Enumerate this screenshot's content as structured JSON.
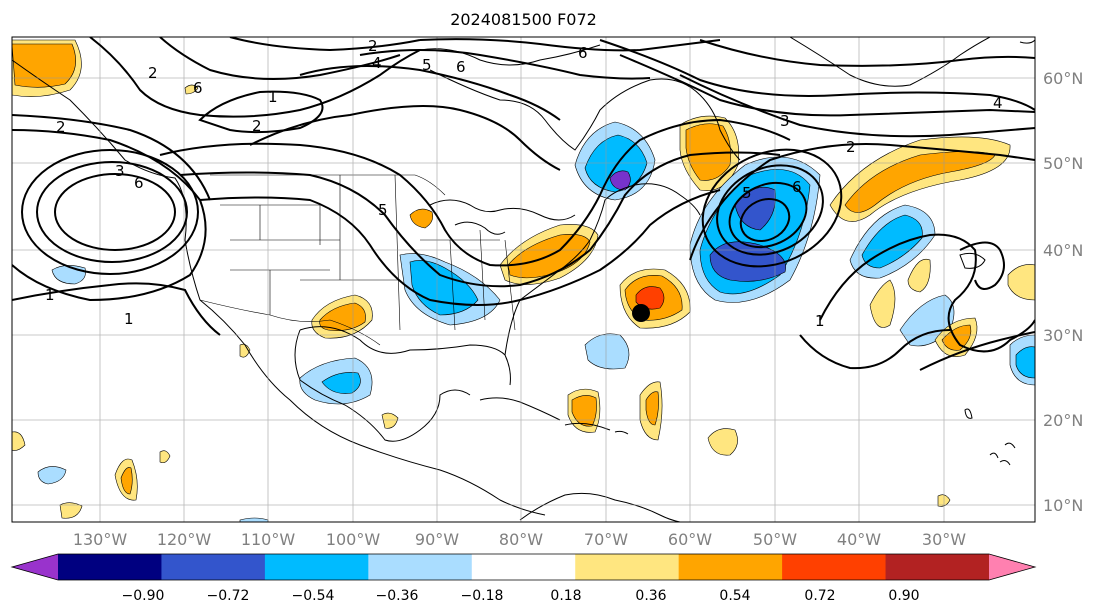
{
  "title": "2024081500 F072",
  "map": {
    "lon_labels": [
      "130°W",
      "120°W",
      "110°W",
      "100°W",
      "90°W",
      "80°W",
      "70°W",
      "60°W",
      "50°W",
      "40°W",
      "30°W"
    ],
    "lat_labels": [
      "60°N",
      "50°N",
      "40°N",
      "30°N",
      "20°N",
      "10°N"
    ],
    "contour_labels": [
      "2",
      "4",
      "5",
      "6",
      "6",
      "6",
      "1",
      "2",
      "2",
      "3",
      "5",
      "6",
      "6",
      "5",
      "1",
      "1",
      "1",
      "2",
      "3",
      "4",
      "2"
    ],
    "marker": "storm-center-dot"
  },
  "colorbar": {
    "ticks": [
      "−0.90",
      "−0.72",
      "−0.54",
      "−0.36",
      "−0.18",
      "0.18",
      "0.36",
      "0.54",
      "0.72",
      "0.90"
    ],
    "colors": [
      "#9933cc",
      "#000080",
      "#3355cc",
      "#00bbff",
      "#aaddff",
      "#ffffff",
      "#ffe680",
      "#ffa500",
      "#ff4000",
      "#b22222",
      "#ff80b0"
    ]
  },
  "palette": {
    "light_blue": "#aaddff",
    "cyan": "#00bbff",
    "blue": "#3355cc",
    "purple": "#7733cc",
    "yellow": "#ffe680",
    "orange": "#ffa500"
  }
}
